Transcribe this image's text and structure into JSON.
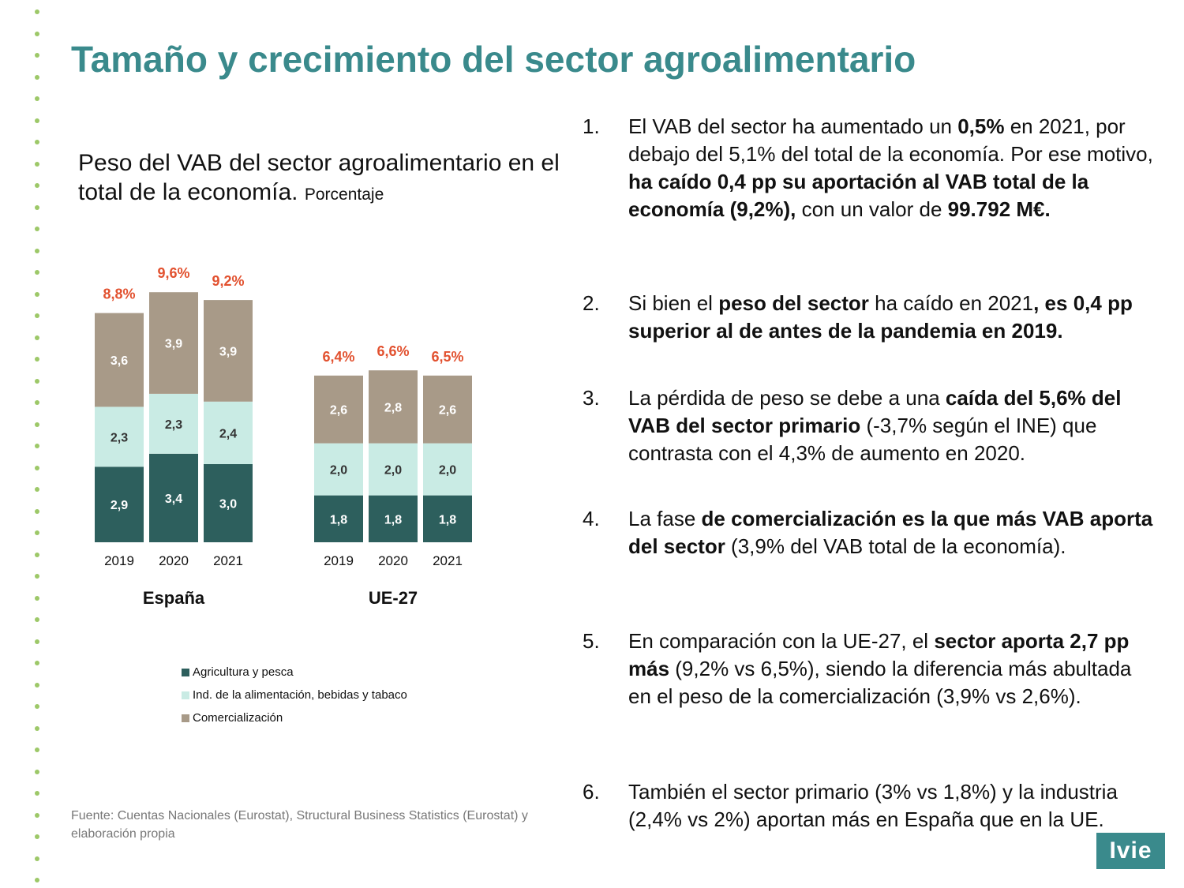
{
  "title": "Tamaño y crecimiento del sector agroalimentario",
  "chart_title": "Peso del VAB del sector agroalimentario en el total de la economía.",
  "chart_unit": "Porcentaje",
  "chart_data": {
    "type": "bar",
    "stacked": true,
    "groups": [
      {
        "name": "España",
        "categories": [
          "2019",
          "2020",
          "2021"
        ],
        "totals": [
          "8,8%",
          "9,6%",
          "9,2%"
        ],
        "series": [
          {
            "name": "Agricultura y pesca",
            "values": [
              2.9,
              3.4,
              3.0
            ],
            "labels": [
              "2,9",
              "3,4",
              "3,0"
            ]
          },
          {
            "name": "Ind. de la alimentación, bebidas y tabaco",
            "values": [
              2.3,
              2.3,
              2.4
            ],
            "labels": [
              "2,3",
              "2,3",
              "2,4"
            ]
          },
          {
            "name": "Comercialización",
            "values": [
              3.6,
              3.9,
              3.9
            ],
            "labels": [
              "3,6",
              "3,9",
              "3,9"
            ]
          }
        ]
      },
      {
        "name": "UE-27",
        "categories": [
          "2019",
          "2020",
          "2021"
        ],
        "totals": [
          "6,4%",
          "6,6%",
          "6,5%"
        ],
        "series": [
          {
            "name": "Agricultura y pesca",
            "values": [
              1.8,
              1.8,
              1.8
            ],
            "labels": [
              "1,8",
              "1,8",
              "1,8"
            ]
          },
          {
            "name": "Ind. de la alimentación, bebidas y tabaco",
            "values": [
              2.0,
              2.0,
              2.0
            ],
            "labels": [
              "2,0",
              "2,0",
              "2,0"
            ]
          },
          {
            "name": "Comercialización",
            "values": [
              2.6,
              2.8,
              2.6
            ],
            "labels": [
              "2,6",
              "2,8",
              "2,6"
            ]
          }
        ]
      }
    ],
    "colors": [
      "#2d5f5d",
      "#c9ebe4",
      "#a89a88"
    ],
    "total_label_color": "#e2512f",
    "legend": [
      "Agricultura y pesca",
      "Ind. de la alimentación, bebidas y tabaco",
      "Comercialización"
    ],
    "legend_position": "bottom"
  },
  "source": "Fuente: Cuentas Nacionales (Eurostat), Structural Business Statistics (Eurostat) y elaboración propia",
  "points": [
    {
      "num": "1.",
      "segments": [
        {
          "text": "El VAB del sector ha aumentado un ",
          "bold": false
        },
        {
          "text": "0,5%",
          "bold": true
        },
        {
          "text": " en 2021, por debajo del 5,1% del total de la economía. Por ese motivo, ",
          "bold": false
        },
        {
          "text": "ha caído 0,4 pp su aportación al VAB total de la economía (9,2%),",
          "bold": true
        },
        {
          "text": " con un valor de ",
          "bold": false
        },
        {
          "text": "99.792 M€.",
          "bold": true
        }
      ]
    },
    {
      "num": "2.",
      "segments": [
        {
          "text": "Si bien el ",
          "bold": false
        },
        {
          "text": "peso del sector",
          "bold": true
        },
        {
          "text": " ha caído en 2021",
          "bold": false
        },
        {
          "text": ", es 0,4 pp superior al de antes de la pandemia en 2019.",
          "bold": true
        }
      ]
    },
    {
      "num": "3.",
      "segments": [
        {
          "text": "La pérdida de peso se debe a una ",
          "bold": false
        },
        {
          "text": "caída del 5,6% del VAB del sector primario",
          "bold": true
        },
        {
          "text": " (-3,7% según el INE) que contrasta con el 4,3% de aumento en 2020.",
          "bold": false
        }
      ]
    },
    {
      "num": "4.",
      "segments": [
        {
          "text": "La fase ",
          "bold": false
        },
        {
          "text": "de comercialización es la que más VAB aporta del sector",
          "bold": true
        },
        {
          "text": " (3,9% del VAB total de la economía).",
          "bold": false
        }
      ]
    },
    {
      "num": "5.",
      "segments": [
        {
          "text": "En comparación con la UE-27, el ",
          "bold": false
        },
        {
          "text": "sector aporta 2,7 pp más",
          "bold": true
        },
        {
          "text": " (9,2% vs 6,5%), siendo la diferencia más abultada en el peso de la comercialización (3,9% vs 2,6%).",
          "bold": false
        }
      ]
    },
    {
      "num": "6.",
      "segments": [
        {
          "text": "También el sector primario (3% vs 1,8%) y la industria (2,4% vs 2%) aportan más en España que en la UE.",
          "bold": false
        }
      ]
    }
  ],
  "logo": "Ivie"
}
